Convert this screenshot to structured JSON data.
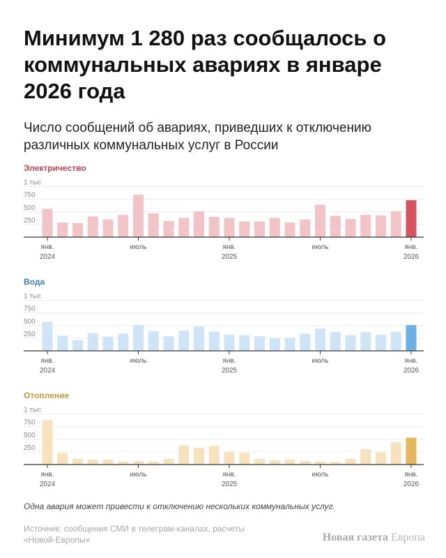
{
  "title": "Минимум 1 280 раз сообщалось о коммунальных авариях в январе 2026 года",
  "subtitle": "Число сообщений об авариях, приведших к отключению различных коммунальных услуг в России",
  "footnote": "Одна авария может привести к отключению нескольких коммунальных услуг.",
  "source": "Источник: сообщения СМИ в телеграм-каналах, расчеты «Новой-Европы»",
  "brand": {
    "bold": "Новая газета",
    "light": "Европа"
  },
  "axis": {
    "y_ticks": [
      "1 тыс",
      "750",
      "500",
      "250"
    ],
    "x_ticks": [
      {
        "index": 0,
        "line1": "янв.",
        "line2": "2024"
      },
      {
        "index": 6,
        "line1": "июль",
        "line2": ""
      },
      {
        "index": 12,
        "line1": "янв.",
        "line2": "2025"
      },
      {
        "index": 18,
        "line1": "июль",
        "line2": ""
      },
      {
        "index": 24,
        "line1": "янв.",
        "line2": "2026"
      }
    ]
  },
  "chart_data": [
    {
      "type": "bar",
      "title": "Электричество",
      "title_color": "#c9414d",
      "bar_color": "#f2c4c7",
      "highlight_color": "#d9535f",
      "ylim": [
        0,
        1000
      ],
      "x": [
        "2024-01",
        "2024-02",
        "2024-03",
        "2024-04",
        "2024-05",
        "2024-06",
        "2024-07",
        "2024-08",
        "2024-09",
        "2024-10",
        "2024-11",
        "2024-12",
        "2025-01",
        "2025-02",
        "2025-03",
        "2025-04",
        "2025-05",
        "2025-06",
        "2025-07",
        "2025-08",
        "2025-09",
        "2025-10",
        "2025-11",
        "2025-12",
        "2026-01"
      ],
      "values": [
        560,
        290,
        280,
        410,
        350,
        440,
        840,
        470,
        320,
        380,
        510,
        400,
        380,
        310,
        310,
        380,
        290,
        350,
        640,
        420,
        360,
        440,
        430,
        510,
        730
      ]
    },
    {
      "type": "bar",
      "title": "Вода",
      "title_color": "#3d7fb5",
      "bar_color": "#cfe5f7",
      "highlight_color": "#6cb0e8",
      "ylim": [
        0,
        1000
      ],
      "x": [
        "2024-01",
        "2024-02",
        "2024-03",
        "2024-04",
        "2024-05",
        "2024-06",
        "2024-07",
        "2024-08",
        "2024-09",
        "2024-10",
        "2024-11",
        "2024-12",
        "2025-01",
        "2025-02",
        "2025-03",
        "2025-04",
        "2025-05",
        "2025-06",
        "2025-07",
        "2025-08",
        "2025-09",
        "2025-10",
        "2025-11",
        "2025-12",
        "2026-01"
      ],
      "values": [
        570,
        300,
        210,
        350,
        280,
        340,
        510,
        390,
        290,
        400,
        480,
        380,
        320,
        310,
        290,
        250,
        260,
        340,
        440,
        370,
        310,
        370,
        320,
        380,
        510
      ]
    },
    {
      "type": "bar",
      "title": "Отопление",
      "title_color": "#c29a3a",
      "bar_color": "#f7e2bd",
      "highlight_color": "#e5b65a",
      "ylim": [
        0,
        1000
      ],
      "x": [
        "2024-01",
        "2024-02",
        "2024-03",
        "2024-04",
        "2024-05",
        "2024-06",
        "2024-07",
        "2024-08",
        "2024-09",
        "2024-10",
        "2024-11",
        "2024-12",
        "2025-01",
        "2025-02",
        "2025-03",
        "2025-04",
        "2025-05",
        "2025-06",
        "2025-07",
        "2025-08",
        "2025-09",
        "2025-10",
        "2025-11",
        "2025-12",
        "2026-01"
      ],
      "values": [
        880,
        230,
        110,
        100,
        100,
        60,
        70,
        60,
        110,
        380,
        330,
        370,
        250,
        230,
        110,
        80,
        100,
        70,
        60,
        50,
        110,
        300,
        240,
        440,
        530
      ]
    }
  ]
}
